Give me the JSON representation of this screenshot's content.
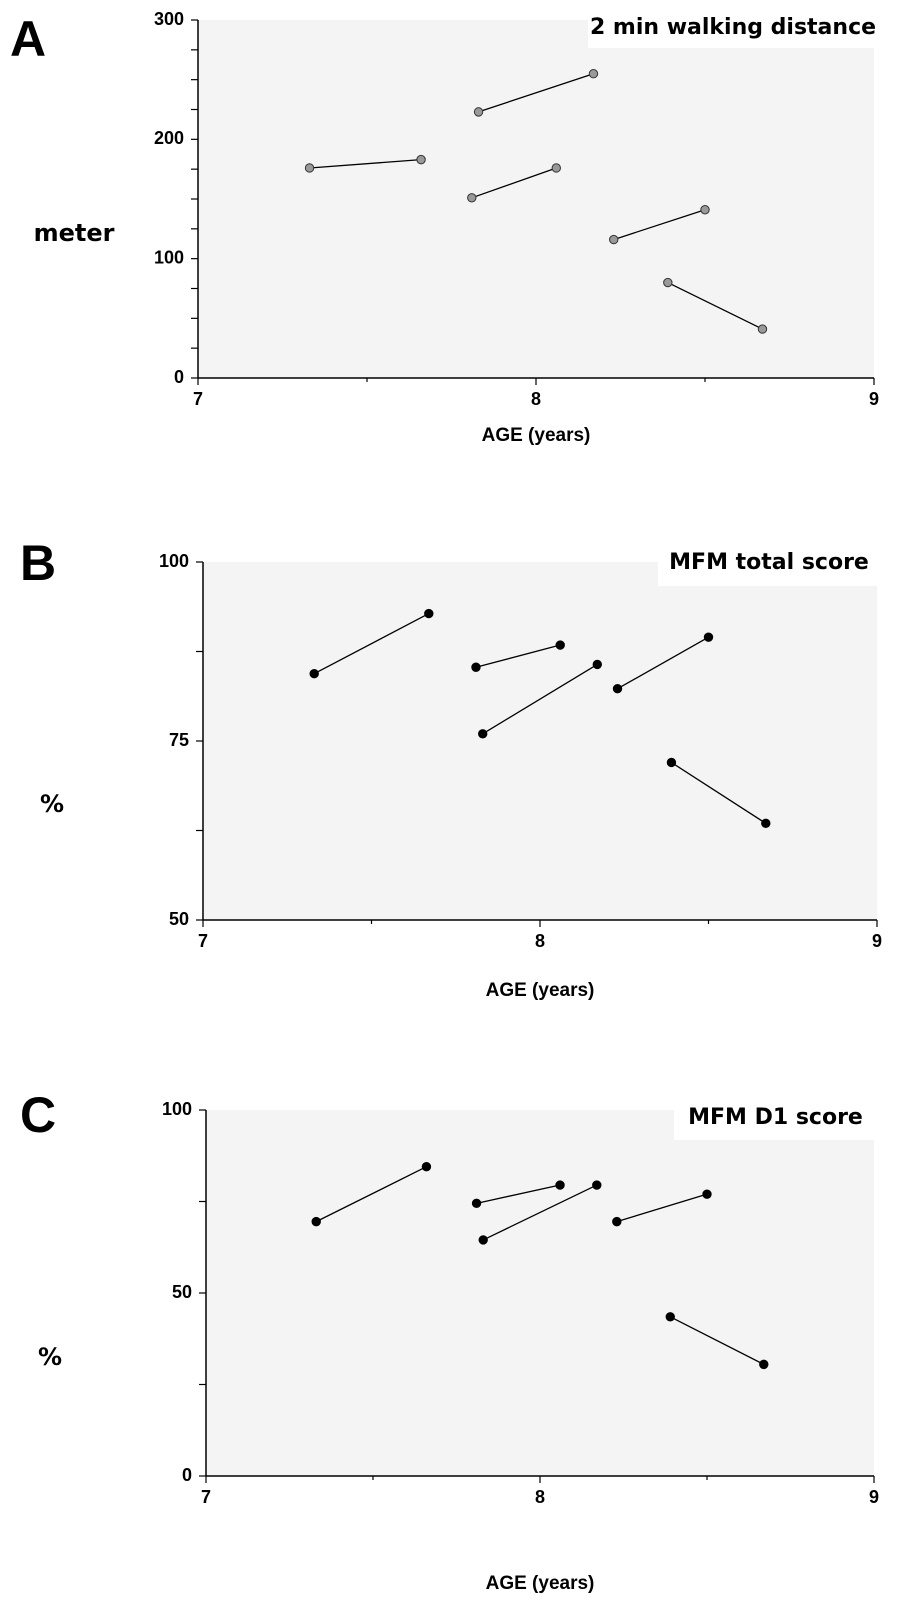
{
  "chart_data": [
    {
      "type": "line",
      "panel": "A",
      "title": "2 min walking distance",
      "xlabel": "AGE (years)",
      "ylabel": "meter",
      "xlim": [
        7,
        9
      ],
      "ylim": [
        0,
        300
      ],
      "x_ticks": [
        7,
        8,
        9
      ],
      "y_ticks": [
        0,
        100,
        200,
        300
      ],
      "y_minor_step": 25,
      "marker_color": "#999999",
      "grid": false,
      "series": [
        {
          "x": [
            7.33,
            7.66
          ],
          "y": [
            176,
            183
          ]
        },
        {
          "x": [
            7.83,
            8.17
          ],
          "y": [
            223,
            255
          ]
        },
        {
          "x": [
            7.81,
            8.06
          ],
          "y": [
            151,
            176
          ]
        },
        {
          "x": [
            8.23,
            8.5
          ],
          "y": [
            116,
            141
          ]
        },
        {
          "x": [
            8.39,
            8.67
          ],
          "y": [
            80,
            41
          ]
        }
      ]
    },
    {
      "type": "line",
      "panel": "B",
      "title": "MFM total score",
      "xlabel": "AGE (years)",
      "ylabel": "%",
      "xlim": [
        7,
        9
      ],
      "ylim": [
        50,
        100
      ],
      "x_ticks": [
        7,
        8,
        9
      ],
      "y_ticks": [
        50,
        75,
        100
      ],
      "y_minor_step": 12.5,
      "marker_color": "#000000",
      "grid": false,
      "series": [
        {
          "x": [
            7.33,
            7.67
          ],
          "y": [
            84.4,
            92.8
          ]
        },
        {
          "x": [
            7.81,
            8.06
          ],
          "y": [
            85.3,
            88.4
          ]
        },
        {
          "x": [
            7.83,
            8.17
          ],
          "y": [
            76.0,
            85.7
          ]
        },
        {
          "x": [
            8.23,
            8.5
          ],
          "y": [
            82.3,
            89.5
          ]
        },
        {
          "x": [
            8.39,
            8.67
          ],
          "y": [
            72.0,
            63.5
          ]
        }
      ]
    },
    {
      "type": "line",
      "panel": "C",
      "title": "MFM D1 score",
      "xlabel": "AGE (years)",
      "ylabel": "%",
      "xlim": [
        7,
        9
      ],
      "ylim": [
        0,
        100
      ],
      "x_ticks": [
        7,
        8,
        9
      ],
      "y_ticks": [
        0,
        50,
        100
      ],
      "y_minor_step": 25,
      "marker_color": "#000000",
      "grid": false,
      "series": [
        {
          "x": [
            7.33,
            7.66
          ],
          "y": [
            69.5,
            84.5
          ]
        },
        {
          "x": [
            7.81,
            8.06
          ],
          "y": [
            74.5,
            79.5
          ]
        },
        {
          "x": [
            7.83,
            8.17
          ],
          "y": [
            64.5,
            79.5
          ]
        },
        {
          "x": [
            8.23,
            8.5
          ],
          "y": [
            69.5,
            77.0
          ]
        },
        {
          "x": [
            8.39,
            8.67
          ],
          "y": [
            43.5,
            30.5
          ]
        }
      ]
    }
  ]
}
